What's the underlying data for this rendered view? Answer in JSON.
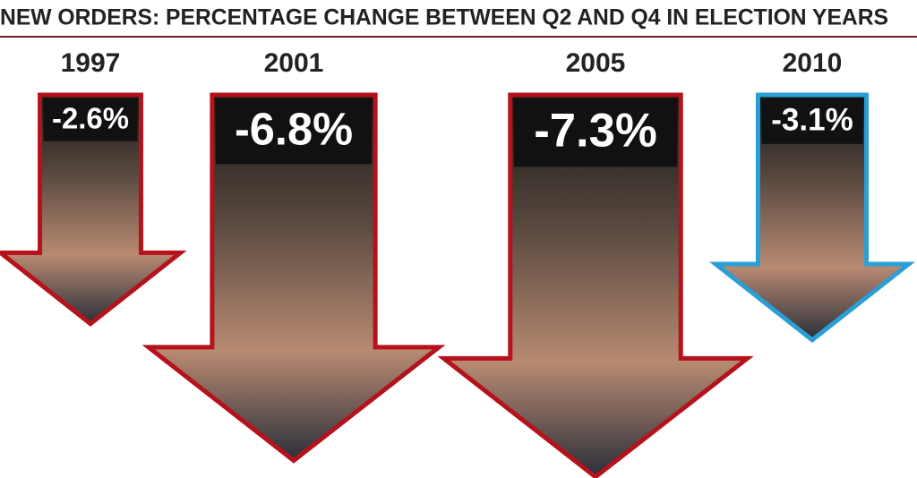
{
  "chart_data": {
    "type": "arrow",
    "title": "NEW ORDERS: PERCENTAGE CHANGE BETWEEN Q2 AND Q4 IN ELECTION YEARS",
    "categories": [
      "1997",
      "2001",
      "2005",
      "2010"
    ],
    "values": [
      -2.6,
      -6.8,
      -7.3,
      -3.1
    ],
    "value_labels": [
      "-2.6%",
      "-6.8%",
      "-7.3%",
      "-3.1%"
    ],
    "colors": [
      "#b5121b",
      "#b5121b",
      "#b5121b",
      "#2a9fd6"
    ]
  }
}
